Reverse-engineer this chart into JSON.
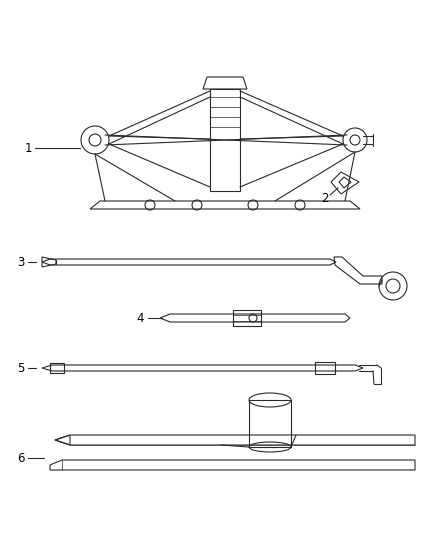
{
  "bg_color": "#ffffff",
  "line_color": "#2a2a2a",
  "label_color": "#000000",
  "fig_width": 4.38,
  "fig_height": 5.33,
  "dpi": 100
}
